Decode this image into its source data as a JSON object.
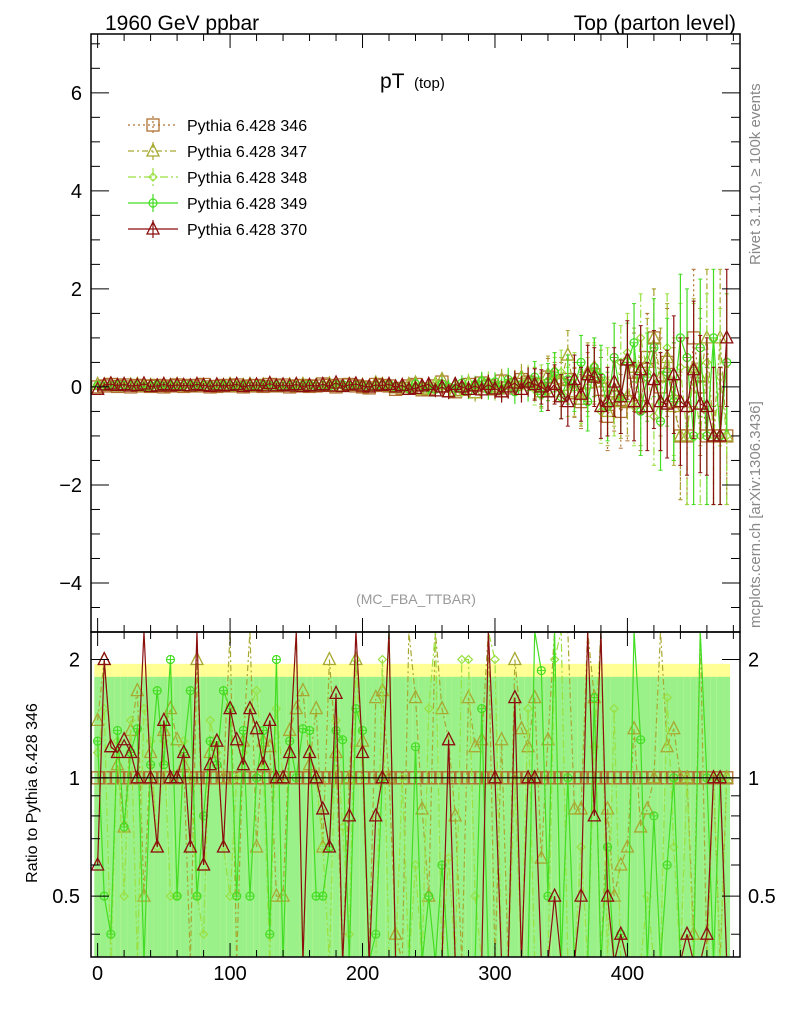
{
  "header": {
    "left": "1960 GeV ppbar",
    "right": "Top (parton level)"
  },
  "side_labels": {
    "rivet": "Rivet 3.1.10, ≥ 100k events",
    "mcplots": "mcplots.cern.ch [arXiv:1306.3436]"
  },
  "chart_data": {
    "type": "scatter",
    "title": "pT",
    "title_sub": "(top)",
    "analysis": "(MC_FBA_TTBAR)",
    "ratio_ylabel": "Ratio to Pythia 6.428 346",
    "xlim": [
      -5,
      485
    ],
    "ylim": [
      -5,
      7.2
    ],
    "ratio_ylim": [
      0.35,
      2.35
    ],
    "x_ticks": [
      0,
      100,
      200,
      300,
      400
    ],
    "y_ticks": [
      -4,
      -2,
      0,
      2,
      4,
      6
    ],
    "ratio_ticks": [
      0.5,
      1,
      2
    ],
    "legend_position": "top-left",
    "x": [
      0,
      5,
      10,
      15,
      20,
      25,
      30,
      35,
      40,
      45,
      50,
      55,
      60,
      65,
      70,
      75,
      80,
      85,
      90,
      95,
      100,
      105,
      110,
      115,
      120,
      125,
      130,
      135,
      140,
      145,
      150,
      155,
      160,
      165,
      170,
      175,
      180,
      185,
      190,
      195,
      200,
      205,
      210,
      215,
      220,
      225,
      230,
      235,
      240,
      245,
      250,
      255,
      260,
      265,
      270,
      275,
      280,
      285,
      290,
      295,
      300,
      305,
      310,
      315,
      320,
      325,
      330,
      335,
      340,
      345,
      350,
      355,
      360,
      365,
      370,
      375,
      380,
      385,
      390,
      395,
      400,
      405,
      410,
      415,
      420,
      425,
      430,
      435,
      440,
      445,
      450,
      455,
      460,
      465,
      470,
      475
    ],
    "series": [
      {
        "name": "Pythia 6.428 346",
        "color": "#b07030",
        "marker": "square",
        "dash": "2,3",
        "values": [
          0.0,
          0.02,
          0.05,
          0.01,
          0.04,
          0.0,
          0.03,
          0.02,
          0.01,
          0.03,
          0.0,
          0.02,
          0.04,
          0.01,
          0.03,
          0.02,
          0.05,
          0.0,
          0.01,
          0.03,
          0.02,
          0.04,
          0.0,
          0.02,
          0.03,
          0.01,
          0.05,
          0.02,
          0.04,
          0.0,
          0.02,
          0.03,
          0.01,
          0.02,
          0.06,
          0.03,
          0.0,
          0.04,
          0.05,
          0.02,
          0.0,
          -0.02,
          0.05,
          0.03,
          0.02,
          -0.05,
          -0.03,
          0.02,
          0.05,
          -0.06,
          -0.04,
          0.02,
          0.1,
          -0.08,
          -0.1,
          -0.05,
          0.05,
          -0.1,
          0.08,
          0.02,
          -0.04,
          0.12,
          -0.02,
          0.05,
          0.15,
          0.1,
          0.05,
          -0.08,
          0.2,
          0.1,
          0.05,
          0.15,
          -0.12,
          -0.3,
          0.1,
          0.25,
          -0.05,
          -0.6,
          -0.2,
          -0.5,
          -0.3,
          0.3,
          -0.4,
          0.6,
          1.0,
          0.0,
          0.5,
          -0.3,
          -1.0,
          -1.0,
          1.0,
          0.0,
          -1.0,
          -1.0,
          -1.0,
          -1.0
        ],
        "errors": [
          0.05,
          0.05,
          0.05,
          0.05,
          0.05,
          0.05,
          0.05,
          0.05,
          0.05,
          0.05,
          0.05,
          0.05,
          0.05,
          0.05,
          0.05,
          0.05,
          0.05,
          0.05,
          0.05,
          0.05,
          0.06,
          0.06,
          0.06,
          0.06,
          0.06,
          0.06,
          0.06,
          0.06,
          0.06,
          0.06,
          0.07,
          0.07,
          0.07,
          0.07,
          0.07,
          0.08,
          0.08,
          0.08,
          0.08,
          0.08,
          0.09,
          0.09,
          0.09,
          0.1,
          0.1,
          0.1,
          0.11,
          0.11,
          0.12,
          0.12,
          0.13,
          0.13,
          0.14,
          0.15,
          0.15,
          0.16,
          0.17,
          0.18,
          0.19,
          0.2,
          0.2,
          0.22,
          0.24,
          0.25,
          0.27,
          0.3,
          0.32,
          0.35,
          0.38,
          0.4,
          0.45,
          0.5,
          0.5,
          0.55,
          0.6,
          0.6,
          0.65,
          0.7,
          0.7,
          0.75,
          0.8,
          0.8,
          0.9,
          0.9,
          1.0,
          1.0,
          1.1,
          1.2,
          1.3,
          1.4,
          1.4,
          1.4,
          1.4,
          1.4,
          1.4,
          1.4
        ]
      },
      {
        "name": "Pythia 6.428 347",
        "color": "#a8a830",
        "marker": "triangle",
        "dash": "6,3,2,3",
        "values": [
          0.05,
          0.04,
          0.06,
          0.02,
          0.03,
          0.04,
          0.05,
          0.01,
          0.03,
          0.02,
          0.04,
          0.03,
          0.05,
          0.02,
          0.01,
          0.04,
          0.03,
          0.02,
          0.04,
          0.03,
          0.05,
          0.01,
          0.03,
          0.05,
          0.02,
          0.04,
          0.06,
          0.01,
          0.02,
          0.04,
          0.03,
          0.05,
          0.02,
          0.03,
          0.04,
          0.06,
          0.02,
          0.01,
          0.05,
          0.04,
          0.03,
          0.0,
          0.08,
          0.05,
          0.02,
          -0.02,
          0.0,
          0.05,
          0.08,
          -0.05,
          -0.02,
          0.06,
          0.15,
          -0.1,
          -0.08,
          0.0,
          0.08,
          -0.12,
          0.1,
          0.05,
          0.0,
          0.15,
          0.05,
          0.1,
          0.2,
          0.12,
          0.08,
          -0.05,
          0.25,
          0.3,
          0.15,
          0.65,
          -0.1,
          -0.25,
          0.3,
          0.4,
          0.1,
          -0.5,
          -0.1,
          -0.3,
          -0.2,
          0.4,
          -0.3,
          0.5,
          1.0,
          0.2,
          0.6,
          -0.4,
          -1.0,
          -1.0,
          0.4,
          0.2,
          1.0,
          -1.0,
          1.0,
          -1.0
        ],
        "errors": [
          0.05,
          0.05,
          0.05,
          0.05,
          0.05,
          0.05,
          0.05,
          0.05,
          0.05,
          0.05,
          0.05,
          0.05,
          0.05,
          0.05,
          0.05,
          0.05,
          0.05,
          0.05,
          0.05,
          0.05,
          0.06,
          0.06,
          0.06,
          0.06,
          0.06,
          0.06,
          0.06,
          0.06,
          0.06,
          0.06,
          0.07,
          0.07,
          0.07,
          0.07,
          0.07,
          0.08,
          0.08,
          0.08,
          0.08,
          0.08,
          0.09,
          0.09,
          0.09,
          0.1,
          0.1,
          0.1,
          0.11,
          0.11,
          0.12,
          0.12,
          0.13,
          0.13,
          0.14,
          0.15,
          0.15,
          0.16,
          0.17,
          0.18,
          0.19,
          0.2,
          0.2,
          0.22,
          0.24,
          0.25,
          0.27,
          0.3,
          0.32,
          0.35,
          0.38,
          0.4,
          0.45,
          0.5,
          0.5,
          0.55,
          0.6,
          0.6,
          0.65,
          0.7,
          0.7,
          0.75,
          0.8,
          0.8,
          0.9,
          0.9,
          1.0,
          1.0,
          1.1,
          1.2,
          1.3,
          1.4,
          1.4,
          1.4,
          1.4,
          1.4,
          1.4,
          1.4
        ]
      },
      {
        "name": "Pythia 6.428 348",
        "color": "#99e040",
        "marker": "diamond",
        "dash": "8,3,2,3",
        "values": [
          0.02,
          0.03,
          0.01,
          0.04,
          0.02,
          0.05,
          0.01,
          0.03,
          0.04,
          0.02,
          0.03,
          0.01,
          0.02,
          0.04,
          0.03,
          0.01,
          0.02,
          0.05,
          0.03,
          0.02,
          0.01,
          0.04,
          0.02,
          0.03,
          0.05,
          0.02,
          0.01,
          0.03,
          0.04,
          0.02,
          0.05,
          0.01,
          0.03,
          0.02,
          0.04,
          0.01,
          0.05,
          0.03,
          0.02,
          0.04,
          0.0,
          0.03,
          0.01,
          0.06,
          0.0,
          0.02,
          -0.03,
          0.0,
          0.03,
          0.0,
          -0.06,
          0.08,
          0.0,
          -0.05,
          0.05,
          -0.1,
          0.1,
          -0.05,
          0.02,
          0.12,
          -0.08,
          0.0,
          0.1,
          0.05,
          0.0,
          0.15,
          -0.05,
          0.1,
          -0.1,
          0.2,
          0.3,
          -0.1,
          0.2,
          -0.2,
          0.0,
          0.3,
          -0.5,
          0.1,
          -0.3,
          0.5,
          0.7,
          -0.4,
          1.0,
          0.3,
          -0.6,
          -0.3,
          0.8,
          -0.2,
          0.4,
          -1.0,
          0.3,
          -1.0,
          0.5,
          -1.0,
          0.2,
          -1.0
        ],
        "errors": [
          0.05,
          0.05,
          0.05,
          0.05,
          0.05,
          0.05,
          0.05,
          0.05,
          0.05,
          0.05,
          0.05,
          0.05,
          0.05,
          0.05,
          0.05,
          0.05,
          0.05,
          0.05,
          0.05,
          0.05,
          0.06,
          0.06,
          0.06,
          0.06,
          0.06,
          0.06,
          0.06,
          0.06,
          0.06,
          0.06,
          0.07,
          0.07,
          0.07,
          0.07,
          0.07,
          0.08,
          0.08,
          0.08,
          0.08,
          0.08,
          0.09,
          0.09,
          0.09,
          0.1,
          0.1,
          0.1,
          0.11,
          0.11,
          0.12,
          0.12,
          0.13,
          0.13,
          0.14,
          0.15,
          0.15,
          0.16,
          0.17,
          0.18,
          0.19,
          0.2,
          0.2,
          0.22,
          0.24,
          0.25,
          0.27,
          0.3,
          0.32,
          0.35,
          0.38,
          0.4,
          0.45,
          0.5,
          0.5,
          0.55,
          0.6,
          0.6,
          0.65,
          0.7,
          0.7,
          0.75,
          0.8,
          0.8,
          0.9,
          0.9,
          1.0,
          1.0,
          1.1,
          1.2,
          1.3,
          1.4,
          1.4,
          1.4,
          1.4,
          1.4,
          1.4,
          1.4
        ]
      },
      {
        "name": "Pythia 6.428 349",
        "color": "#44dd22",
        "marker": "circleplus",
        "dash": "",
        "values": [
          0.03,
          0.01,
          0.02,
          0.05,
          0.03,
          0.02,
          0.04,
          0.0,
          0.02,
          0.05,
          0.01,
          0.04,
          0.02,
          0.03,
          0.05,
          0.01,
          0.04,
          0.03,
          0.02,
          0.05,
          0.03,
          0.02,
          0.04,
          0.01,
          0.03,
          0.05,
          0.02,
          0.04,
          0.01,
          0.03,
          0.02,
          0.04,
          0.05,
          0.01,
          0.03,
          0.02,
          0.04,
          0.05,
          0.01,
          0.03,
          0.04,
          0.0,
          0.02,
          0.03,
          0.06,
          0.0,
          0.02,
          -0.04,
          0.06,
          0.02,
          -0.02,
          -0.05,
          0.06,
          0.0,
          -0.03,
          0.08,
          -0.08,
          0.05,
          0.12,
          -0.06,
          0.1,
          -0.05,
          0.15,
          -0.1,
          0.05,
          0.0,
          0.2,
          -0.15,
          0.1,
          0.3,
          -0.2,
          0.15,
          0.0,
          0.5,
          -0.3,
          0.4,
          0.2,
          -0.4,
          0.6,
          -0.2,
          0.5,
          0.9,
          -0.5,
          0.2,
          0.8,
          -0.7,
          0.3,
          -0.3,
          1.0,
          0.6,
          -1.0,
          0.8,
          -1.0,
          1.0,
          -1.0,
          0.5
        ],
        "errors": [
          0.05,
          0.05,
          0.05,
          0.05,
          0.05,
          0.05,
          0.05,
          0.05,
          0.05,
          0.05,
          0.05,
          0.05,
          0.05,
          0.05,
          0.05,
          0.05,
          0.05,
          0.05,
          0.05,
          0.05,
          0.06,
          0.06,
          0.06,
          0.06,
          0.06,
          0.06,
          0.06,
          0.06,
          0.06,
          0.06,
          0.07,
          0.07,
          0.07,
          0.07,
          0.07,
          0.08,
          0.08,
          0.08,
          0.08,
          0.08,
          0.09,
          0.09,
          0.09,
          0.1,
          0.1,
          0.1,
          0.11,
          0.11,
          0.12,
          0.12,
          0.13,
          0.13,
          0.14,
          0.15,
          0.15,
          0.16,
          0.17,
          0.18,
          0.19,
          0.2,
          0.2,
          0.22,
          0.24,
          0.25,
          0.27,
          0.3,
          0.32,
          0.35,
          0.38,
          0.4,
          0.45,
          0.5,
          0.5,
          0.55,
          0.6,
          0.6,
          0.65,
          0.7,
          0.7,
          0.75,
          0.8,
          0.8,
          0.9,
          0.9,
          1.0,
          1.0,
          1.1,
          1.2,
          1.3,
          1.4,
          1.4,
          1.4,
          1.4,
          1.4,
          1.4,
          1.4
        ]
      },
      {
        "name": "Pythia 6.428 370",
        "color": "#8b0f0f",
        "marker": "triangle",
        "dash": "",
        "values": [
          -0.05,
          0.04,
          0.06,
          0.03,
          0.05,
          0.02,
          0.03,
          0.06,
          0.01,
          0.02,
          0.05,
          0.02,
          0.04,
          0.03,
          0.02,
          0.05,
          0.03,
          0.01,
          0.04,
          0.02,
          0.03,
          0.05,
          0.01,
          0.03,
          0.04,
          0.02,
          0.07,
          0.02,
          0.04,
          0.02,
          0.05,
          0.01,
          0.03,
          0.02,
          0.05,
          0.02,
          0.08,
          0.01,
          0.04,
          0.06,
          0.02,
          0.0,
          0.04,
          0.03,
          0.05,
          0.0,
          0.03,
          -0.05,
          -0.03,
          0.02,
          0.05,
          -0.08,
          0.0,
          -0.1,
          0.05,
          0.0,
          -0.05,
          0.02,
          -0.06,
          0.05,
          -0.04,
          -0.1,
          0.0,
          0.08,
          -0.05,
          0.1,
          0.05,
          0.0,
          -0.1,
          0.05,
          -0.2,
          -0.3,
          0.15,
          -0.15,
          0.25,
          0.2,
          -0.4,
          -0.3,
          0.1,
          -0.2,
          0.55,
          -0.3,
          0.35,
          -0.4,
          0.15,
          -0.3,
          -0.35,
          0.25,
          -0.3,
          -0.4,
          0.35,
          -0.35,
          -0.4,
          -1.0,
          -1.0,
          1.0
        ],
        "errors": [
          0.05,
          0.05,
          0.05,
          0.05,
          0.05,
          0.05,
          0.05,
          0.05,
          0.05,
          0.05,
          0.05,
          0.05,
          0.05,
          0.05,
          0.05,
          0.05,
          0.05,
          0.05,
          0.05,
          0.05,
          0.06,
          0.06,
          0.06,
          0.06,
          0.06,
          0.06,
          0.06,
          0.06,
          0.06,
          0.06,
          0.07,
          0.07,
          0.07,
          0.07,
          0.07,
          0.08,
          0.08,
          0.08,
          0.08,
          0.08,
          0.09,
          0.09,
          0.09,
          0.1,
          0.1,
          0.1,
          0.11,
          0.11,
          0.12,
          0.12,
          0.13,
          0.13,
          0.14,
          0.15,
          0.15,
          0.16,
          0.17,
          0.18,
          0.19,
          0.2,
          0.2,
          0.22,
          0.24,
          0.25,
          0.27,
          0.3,
          0.32,
          0.35,
          0.38,
          0.4,
          0.45,
          0.5,
          0.5,
          0.55,
          0.6,
          0.6,
          0.65,
          0.7,
          0.7,
          0.75,
          0.8,
          0.8,
          0.9,
          0.9,
          1.0,
          1.0,
          1.1,
          1.2,
          1.3,
          1.4,
          1.4,
          1.4,
          1.4,
          1.4,
          1.4,
          1.4
        ]
      }
    ]
  }
}
